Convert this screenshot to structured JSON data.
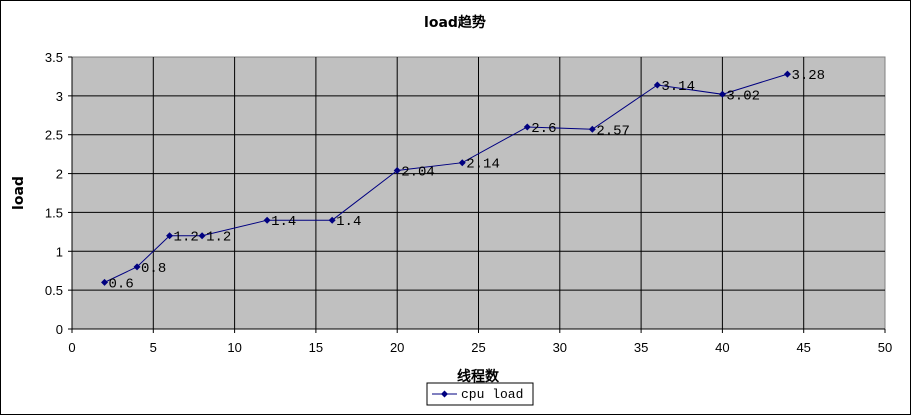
{
  "chart_data": {
    "type": "line",
    "title": "load趋势",
    "xlabel": "线程数",
    "ylabel": "load",
    "xlim": [
      0,
      50
    ],
    "ylim": [
      0,
      3.5
    ],
    "xticks": [
      "0",
      "5",
      "10",
      "15",
      "20",
      "25",
      "30",
      "35",
      "40",
      "45",
      "50"
    ],
    "yticks": [
      "0",
      "0.5",
      "1",
      "1.5",
      "2",
      "2.5",
      "3",
      "3.5"
    ],
    "grid": true,
    "legend_position": "bottom",
    "series": [
      {
        "name": "cpu load",
        "color": "#000080",
        "x": [
          2,
          4,
          6,
          8,
          12,
          16,
          20,
          24,
          28,
          32,
          36,
          40,
          44
        ],
        "y": [
          0.6,
          0.8,
          1.2,
          1.2,
          1.4,
          1.4,
          2.04,
          2.14,
          2.6,
          2.57,
          3.14,
          3.02,
          3.28
        ],
        "labels": [
          "0.6",
          "0.8",
          "1.2",
          "1.2",
          "1.4",
          "1.4",
          "2.04",
          "2.14",
          "2.6",
          "2.57",
          "3.14",
          "3.02",
          "3.28"
        ]
      }
    ],
    "plot_bg": "#c0c0c0",
    "grid_color": "#000000"
  }
}
